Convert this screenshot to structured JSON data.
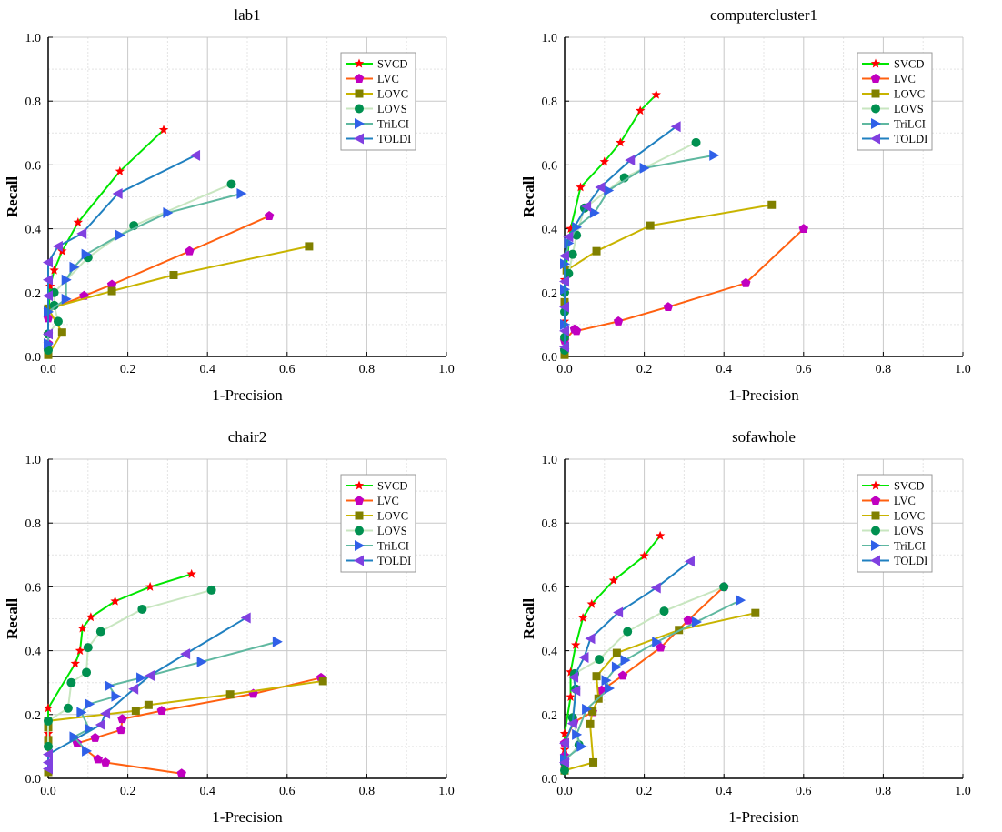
{
  "chart_data": [
    {
      "type": "line",
      "title": "lab1",
      "xlabel": "1-Precision",
      "ylabel": "Recall",
      "xlim": [
        0,
        1
      ],
      "ylim": [
        0,
        1
      ],
      "grid": true,
      "legend": "top-right",
      "ticks": [
        "0.0",
        "0.2",
        "0.4",
        "0.6",
        "0.8",
        "1.0"
      ],
      "series": [
        {
          "name": "SVCD",
          "points": [
            [
              0,
              0.12
            ],
            [
              0.005,
              0.22
            ],
            [
              0.015,
              0.27
            ],
            [
              0.035,
              0.33
            ],
            [
              0.075,
              0.42
            ],
            [
              0.18,
              0.58
            ],
            [
              0.29,
              0.71
            ]
          ]
        },
        {
          "name": "LVC",
          "points": [
            [
              0,
              0.02
            ],
            [
              0,
              0.04
            ],
            [
              0,
              0.07
            ],
            [
              0,
              0.12
            ],
            [
              0,
              0.145
            ],
            [
              0.09,
              0.19
            ],
            [
              0.16,
              0.225
            ],
            [
              0.355,
              0.33
            ],
            [
              0.555,
              0.44
            ]
          ]
        },
        {
          "name": "LOVC",
          "points": [
            [
              0,
              0.005
            ],
            [
              0.035,
              0.075
            ],
            [
              0,
              0.15
            ],
            [
              0.16,
              0.205
            ],
            [
              0.315,
              0.255
            ],
            [
              0.655,
              0.345
            ]
          ]
        },
        {
          "name": "LOVS",
          "points": [
            [
              0,
              0.02
            ],
            [
              0,
              0.07
            ],
            [
              0.025,
              0.11
            ],
            [
              0.015,
              0.16
            ],
            [
              0.015,
              0.2
            ],
            [
              0.1,
              0.31
            ],
            [
              0.215,
              0.41
            ],
            [
              0.46,
              0.54
            ]
          ]
        },
        {
          "name": "TriLCI",
          "points": [
            [
              0,
              0.04
            ],
            [
              0,
              0.14
            ],
            [
              0.045,
              0.18
            ],
            [
              0.045,
              0.24
            ],
            [
              0.065,
              0.28
            ],
            [
              0.095,
              0.32
            ],
            [
              0.18,
              0.38
            ],
            [
              0.3,
              0.45
            ],
            [
              0.485,
              0.51
            ]
          ]
        },
        {
          "name": "TOLDI",
          "points": [
            [
              0,
              0.07
            ],
            [
              0,
              0.19
            ],
            [
              0,
              0.24
            ],
            [
              0,
              0.295
            ],
            [
              0.025,
              0.345
            ],
            [
              0.085,
              0.385
            ],
            [
              0.175,
              0.51
            ],
            [
              0.37,
              0.63
            ]
          ]
        }
      ]
    },
    {
      "type": "line",
      "title": "computercluster1",
      "xlabel": "1-Precision",
      "ylabel": "Recall",
      "xlim": [
        0,
        1
      ],
      "ylim": [
        0,
        1
      ],
      "grid": true,
      "legend": "top-right",
      "ticks": [
        "0.0",
        "0.2",
        "0.4",
        "0.6",
        "0.8",
        "1.0"
      ],
      "series": [
        {
          "name": "SVCD",
          "points": [
            [
              0,
              0.11
            ],
            [
              0,
              0.24
            ],
            [
              0.015,
              0.4
            ],
            [
              0.04,
              0.53
            ],
            [
              0.1,
              0.61
            ],
            [
              0.14,
              0.67
            ],
            [
              0.19,
              0.77
            ],
            [
              0.23,
              0.82
            ]
          ]
        },
        {
          "name": "LVC",
          "points": [
            [
              0,
              0.02
            ],
            [
              0,
              0.05
            ],
            [
              0.025,
              0.085
            ],
            [
              0.03,
              0.08
            ],
            [
              0.135,
              0.11
            ],
            [
              0.26,
              0.155
            ],
            [
              0.455,
              0.23
            ],
            [
              0.6,
              0.4
            ]
          ]
        },
        {
          "name": "LOVC",
          "points": [
            [
              0,
              0.005
            ],
            [
              0,
              0.17
            ],
            [
              0.005,
              0.27
            ],
            [
              0.08,
              0.33
            ],
            [
              0.215,
              0.41
            ],
            [
              0.52,
              0.475
            ]
          ]
        },
        {
          "name": "LOVS",
          "points": [
            [
              0,
              0.02
            ],
            [
              0,
              0.06
            ],
            [
              0,
              0.14
            ],
            [
              0,
              0.2
            ],
            [
              0.01,
              0.26
            ],
            [
              0.02,
              0.32
            ],
            [
              0.03,
              0.38
            ],
            [
              0.05,
              0.465
            ],
            [
              0.15,
              0.56
            ],
            [
              0.33,
              0.67
            ]
          ]
        },
        {
          "name": "TriLCI",
          "points": [
            [
              0,
              0.1
            ],
            [
              0,
              0.21
            ],
            [
              0,
              0.29
            ],
            [
              0.01,
              0.355
            ],
            [
              0.03,
              0.405
            ],
            [
              0.075,
              0.45
            ],
            [
              0.11,
              0.52
            ],
            [
              0.2,
              0.59
            ],
            [
              0.375,
              0.63
            ]
          ]
        },
        {
          "name": "TOLDI",
          "points": [
            [
              0,
              0.03
            ],
            [
              0,
              0.08
            ],
            [
              0,
              0.155
            ],
            [
              0,
              0.235
            ],
            [
              0,
              0.315
            ],
            [
              0.01,
              0.375
            ],
            [
              0.055,
              0.47
            ],
            [
              0.09,
              0.53
            ],
            [
              0.165,
              0.615
            ],
            [
              0.28,
              0.72
            ]
          ]
        }
      ]
    },
    {
      "type": "line",
      "title": "chair2",
      "xlabel": "1-Precision",
      "ylabel": "Recall",
      "xlim": [
        0,
        1
      ],
      "ylim": [
        0,
        1
      ],
      "grid": true,
      "legend": "top-right",
      "ticks": [
        "0.0",
        "0.2",
        "0.4",
        "0.6",
        "0.8",
        "1.0"
      ],
      "series": [
        {
          "name": "SVCD",
          "points": [
            [
              0,
              0.14
            ],
            [
              0,
              0.22
            ],
            [
              0.068,
              0.36
            ],
            [
              0.08,
              0.4
            ],
            [
              0.086,
              0.47
            ],
            [
              0.107,
              0.505
            ],
            [
              0.168,
              0.555
            ],
            [
              0.256,
              0.6
            ],
            [
              0.36,
              0.64
            ]
          ]
        },
        {
          "name": "LVC",
          "points": [
            [
              0.335,
              0.015
            ],
            [
              0.144,
              0.05
            ],
            [
              0.125,
              0.06
            ],
            [
              0.073,
              0.11
            ],
            [
              0.118,
              0.127
            ],
            [
              0.183,
              0.152
            ],
            [
              0.186,
              0.186
            ],
            [
              0.285,
              0.212
            ],
            [
              0.515,
              0.265
            ],
            [
              0.685,
              0.315
            ]
          ]
        },
        {
          "name": "LOVC",
          "points": [
            [
              0,
              0.02
            ],
            [
              0,
              0.12
            ],
            [
              0,
              0.16
            ],
            [
              0,
              0.18
            ],
            [
              0.22,
              0.212
            ],
            [
              0.252,
              0.23
            ],
            [
              0.457,
              0.263
            ],
            [
              0.69,
              0.305
            ]
          ]
        },
        {
          "name": "LOVS",
          "points": [
            [
              0,
              0.1
            ],
            [
              0,
              0.18
            ],
            [
              0.05,
              0.22
            ],
            [
              0.058,
              0.3
            ],
            [
              0.096,
              0.332
            ],
            [
              0.1,
              0.41
            ],
            [
              0.132,
              0.46
            ],
            [
              0.236,
              0.53
            ],
            [
              0.41,
              0.59
            ]
          ]
        },
        {
          "name": "TriLCI",
          "points": [
            [
              0.096,
              0.086
            ],
            [
              0.065,
              0.13
            ],
            [
              0.103,
              0.155
            ],
            [
              0.083,
              0.207
            ],
            [
              0.103,
              0.233
            ],
            [
              0.17,
              0.257
            ],
            [
              0.153,
              0.29
            ],
            [
              0.233,
              0.315
            ],
            [
              0.385,
              0.365
            ],
            [
              0.575,
              0.428
            ]
          ]
        },
        {
          "name": "TOLDI",
          "points": [
            [
              0,
              0.03
            ],
            [
              0,
              0.05
            ],
            [
              0,
              0.075
            ],
            [
              0.132,
              0.168
            ],
            [
              0.144,
              0.203
            ],
            [
              0.215,
              0.28
            ],
            [
              0.256,
              0.322
            ],
            [
              0.345,
              0.39
            ],
            [
              0.497,
              0.503
            ]
          ]
        }
      ]
    },
    {
      "type": "line",
      "title": "sofawhole",
      "xlabel": "1-Precision",
      "ylabel": "Recall",
      "xlim": [
        0,
        1
      ],
      "ylim": [
        0,
        1
      ],
      "grid": true,
      "legend": "top-right",
      "ticks": [
        "0.0",
        "0.2",
        "0.4",
        "0.6",
        "0.8",
        "1.0"
      ],
      "series": [
        {
          "name": "SVCD",
          "points": [
            [
              0,
              0.09
            ],
            [
              0,
              0.14
            ],
            [
              0.015,
              0.255
            ],
            [
              0.015,
              0.333
            ],
            [
              0.028,
              0.418
            ],
            [
              0.046,
              0.503
            ],
            [
              0.068,
              0.546
            ],
            [
              0.123,
              0.62
            ],
            [
              0.2,
              0.697
            ],
            [
              0.24,
              0.76
            ]
          ]
        },
        {
          "name": "LVC",
          "points": [
            [
              0,
              0.045
            ],
            [
              0,
              0.07
            ],
            [
              0,
              0.11
            ],
            [
              0.023,
              0.176
            ],
            [
              0.07,
              0.208
            ],
            [
              0.093,
              0.276
            ],
            [
              0.146,
              0.322
            ],
            [
              0.241,
              0.41
            ],
            [
              0.31,
              0.495
            ],
            [
              0.4,
              0.6
            ]
          ]
        },
        {
          "name": "LOVC",
          "points": [
            [
              0,
              0.025
            ],
            [
              0.072,
              0.05
            ],
            [
              0.064,
              0.17
            ],
            [
              0.07,
              0.21
            ],
            [
              0.085,
              0.25
            ],
            [
              0.08,
              0.32
            ],
            [
              0.131,
              0.393
            ],
            [
              0.287,
              0.465
            ],
            [
              0.479,
              0.518
            ]
          ]
        },
        {
          "name": "LOVS",
          "points": [
            [
              0,
              0.025
            ],
            [
              0,
              0.05
            ],
            [
              0.036,
              0.105
            ],
            [
              0.02,
              0.19
            ],
            [
              0.028,
              0.28
            ],
            [
              0.025,
              0.328
            ],
            [
              0.087,
              0.373
            ],
            [
              0.158,
              0.46
            ],
            [
              0.25,
              0.524
            ],
            [
              0.4,
              0.6
            ]
          ]
        },
        {
          "name": "TriLCI",
          "points": [
            [
              0,
              0.06
            ],
            [
              0.042,
              0.1
            ],
            [
              0.03,
              0.137
            ],
            [
              0.055,
              0.217
            ],
            [
              0.112,
              0.282
            ],
            [
              0.104,
              0.307
            ],
            [
              0.13,
              0.349
            ],
            [
              0.152,
              0.37
            ],
            [
              0.231,
              0.427
            ],
            [
              0.331,
              0.49
            ],
            [
              0.441,
              0.558
            ]
          ]
        },
        {
          "name": "TOLDI",
          "points": [
            [
              0,
              0.05
            ],
            [
              0,
              0.11
            ],
            [
              0.02,
              0.172
            ],
            [
              0.028,
              0.275
            ],
            [
              0.023,
              0.317
            ],
            [
              0.049,
              0.379
            ],
            [
              0.065,
              0.438
            ],
            [
              0.135,
              0.52
            ],
            [
              0.23,
              0.597
            ],
            [
              0.315,
              0.68
            ]
          ]
        }
      ]
    }
  ],
  "styles": {
    "SVCD": {
      "line": "#00e600",
      "marker": "#ff0000",
      "shape": "star"
    },
    "LVC": {
      "line": "#ff6010",
      "marker": "#c000c0",
      "shape": "pentagon"
    },
    "LOVC": {
      "line": "#c8b400",
      "marker": "#808000",
      "shape": "square"
    },
    "LOVS": {
      "line": "#c8e6c0",
      "marker": "#009050",
      "shape": "circle"
    },
    "TriLCI": {
      "line": "#5fb8a0",
      "marker": "#3060e8",
      "shape": "triangle-right"
    },
    "TOLDI": {
      "line": "#2080c0",
      "marker": "#8040e0",
      "shape": "triangle-left"
    }
  }
}
